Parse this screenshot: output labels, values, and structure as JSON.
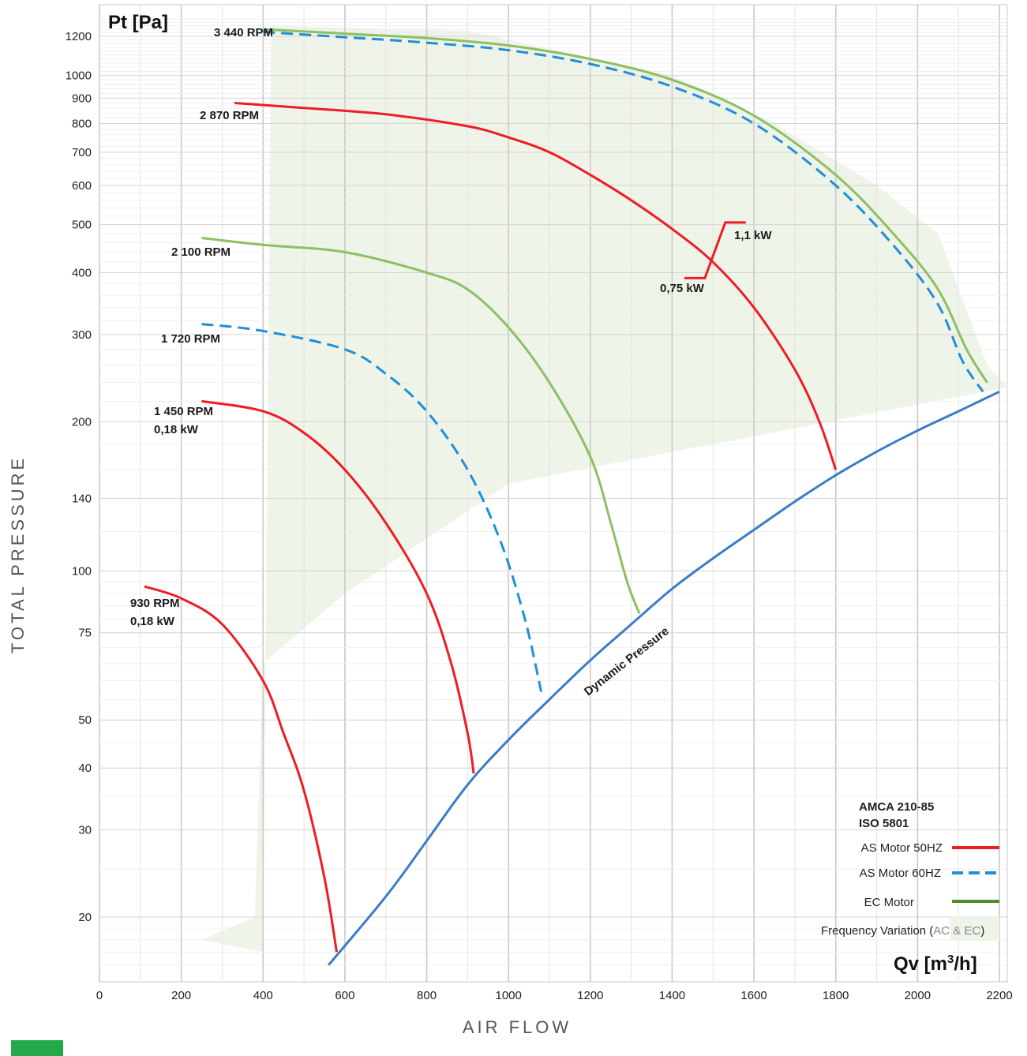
{
  "colors": {
    "as_50hz": "#ee1c24",
    "as_60hz": "#1f8fd6",
    "ec": "#8cc063",
    "ec_legend": "#4f8a2b",
    "dynamic": "#3a7cc7",
    "freq_fill": "#eef4e8",
    "brand": "#23a94a"
  },
  "chart_data": {
    "type": "line",
    "y_unit": "Pt [Pa]",
    "x_unit_prefix": "Qv [m",
    "x_unit_sup": "3",
    "x_unit_suffix": "/h]",
    "ylabel": "TOTAL PRESSURE",
    "xlabel": "AIR FLOW",
    "x_ticks": [
      0,
      200,
      400,
      600,
      800,
      1000,
      1200,
      1400,
      1600,
      1800,
      2000,
      2200
    ],
    "xlim": [
      0,
      2200
    ],
    "y_scale": "log",
    "ylim": [
      16,
      1300
    ],
    "y_ticks": [
      20,
      30,
      40,
      50,
      75,
      100,
      140,
      200,
      300,
      400,
      500,
      600,
      700,
      800,
      900,
      1000,
      1200
    ],
    "grid": true,
    "series": [
      {
        "name": "3 440 RPM",
        "motor": "EC Motor",
        "style": "ec",
        "points": [
          [
            400,
            1240
          ],
          [
            600,
            1215
          ],
          [
            800,
            1190
          ],
          [
            1000,
            1150
          ],
          [
            1200,
            1080
          ],
          [
            1400,
            980
          ],
          [
            1600,
            830
          ],
          [
            1800,
            630
          ],
          [
            1950,
            470
          ],
          [
            2050,
            370
          ],
          [
            2120,
            280
          ],
          [
            2170,
            240
          ]
        ]
      },
      {
        "name": "3 440 RPM",
        "motor": "AS Motor 60HZ",
        "style": "as60",
        "points": [
          [
            400,
            1225
          ],
          [
            600,
            1195
          ],
          [
            800,
            1165
          ],
          [
            1000,
            1125
          ],
          [
            1200,
            1055
          ],
          [
            1400,
            950
          ],
          [
            1600,
            800
          ],
          [
            1800,
            600
          ],
          [
            1950,
            445
          ],
          [
            2050,
            345
          ],
          [
            2110,
            265
          ],
          [
            2160,
            230
          ]
        ]
      },
      {
        "name": "2 870 RPM",
        "motor": "AS Motor 50HZ",
        "style": "as50",
        "points": [
          [
            330,
            880
          ],
          [
            500,
            860
          ],
          [
            700,
            835
          ],
          [
            900,
            790
          ],
          [
            1000,
            750
          ],
          [
            1100,
            700
          ],
          [
            1200,
            630
          ],
          [
            1300,
            560
          ],
          [
            1400,
            490
          ],
          [
            1500,
            420
          ],
          [
            1600,
            340
          ],
          [
            1700,
            255
          ],
          [
            1760,
            200
          ],
          [
            1800,
            160
          ]
        ]
      },
      {
        "name": "2 100 RPM",
        "motor": "EC Motor",
        "style": "ec",
        "points": [
          [
            250,
            470
          ],
          [
            400,
            455
          ],
          [
            600,
            440
          ],
          [
            800,
            400
          ],
          [
            900,
            370
          ],
          [
            1000,
            310
          ],
          [
            1100,
            240
          ],
          [
            1200,
            170
          ],
          [
            1250,
            125
          ],
          [
            1290,
            95
          ],
          [
            1320,
            82
          ]
        ]
      },
      {
        "name": "1 720 RPM",
        "motor": "AS Motor 60HZ",
        "style": "as60",
        "points": [
          [
            250,
            315
          ],
          [
            400,
            305
          ],
          [
            600,
            280
          ],
          [
            700,
            250
          ],
          [
            800,
            210
          ],
          [
            900,
            160
          ],
          [
            980,
            115
          ],
          [
            1040,
            80
          ],
          [
            1080,
            57
          ]
        ]
      },
      {
        "name": "1 450 RPM",
        "motor": "AS Motor 50HZ",
        "style": "as50",
        "power": "0,18 kW",
        "points": [
          [
            250,
            220
          ],
          [
            400,
            210
          ],
          [
            500,
            190
          ],
          [
            600,
            160
          ],
          [
            700,
            125
          ],
          [
            800,
            90
          ],
          [
            860,
            65
          ],
          [
            900,
            47
          ],
          [
            915,
            39
          ]
        ]
      },
      {
        "name": "930 RPM",
        "motor": "AS Motor 50HZ",
        "style": "as50",
        "power": "0,18 kW",
        "points": [
          [
            110,
            93
          ],
          [
            200,
            88
          ],
          [
            300,
            78
          ],
          [
            400,
            60
          ],
          [
            450,
            47
          ],
          [
            500,
            36
          ],
          [
            550,
            24
          ],
          [
            580,
            17
          ]
        ]
      },
      {
        "name": "Dynamic Pressure",
        "style": "dynamic",
        "points": [
          [
            560,
            16
          ],
          [
            700,
            22
          ],
          [
            800,
            28.5
          ],
          [
            900,
            37
          ],
          [
            1000,
            45.6
          ],
          [
            1100,
            55
          ],
          [
            1200,
            66
          ],
          [
            1300,
            78
          ],
          [
            1400,
            92
          ],
          [
            1500,
            106
          ],
          [
            1600,
            121
          ],
          [
            1700,
            138
          ],
          [
            1800,
            156
          ],
          [
            1900,
            174
          ],
          [
            2000,
            192
          ],
          [
            2100,
            210
          ],
          [
            2200,
            230
          ]
        ]
      }
    ],
    "power_step": {
      "points": [
        [
          1430,
          390
        ],
        [
          1480,
          390
        ],
        [
          1530,
          505
        ],
        [
          1580,
          505
        ]
      ],
      "low_label": "0,75 kW",
      "high_label": "1,1 kW"
    },
    "frequency_region": [
      [
        250,
        18
      ],
      [
        400,
        17
      ],
      [
        420,
        1260
      ],
      [
        900,
        1230
      ],
      [
        1400,
        1000
      ],
      [
        1650,
        800
      ],
      [
        1900,
        600
      ],
      [
        2050,
        480
      ],
      [
        2170,
        260
      ],
      [
        2220,
        235
      ],
      [
        1000,
        150
      ],
      [
        600,
        90
      ],
      [
        400,
        65
      ],
      [
        380,
        20
      ]
    ],
    "labels": {
      "rpm_3440": "3 440 RPM",
      "rpm_2870": "2 870 RPM",
      "rpm_2100": "2 100 RPM",
      "rpm_1720": "1 720 RPM",
      "rpm_1450": "1 450 RPM",
      "kw_1450": "0,18 kW",
      "rpm_930": "930 RPM",
      "kw_930": "0,18 kW",
      "kw_075": "0,75 kW",
      "kw_11": "1,1 kW",
      "dynamic": "Dynamic Pressure"
    }
  },
  "legend": {
    "standard_1": "AMCA 210-85",
    "standard_2": "ISO 5801",
    "as50": "AS Motor  50HZ",
    "as60": "AS Motor  60HZ",
    "ec": "EC Motor",
    "freq_prefix": "Frequency Variation (",
    "freq_ac": "AC",
    "freq_amp": " & ",
    "freq_ec": "EC",
    "freq_suffix": ")"
  }
}
